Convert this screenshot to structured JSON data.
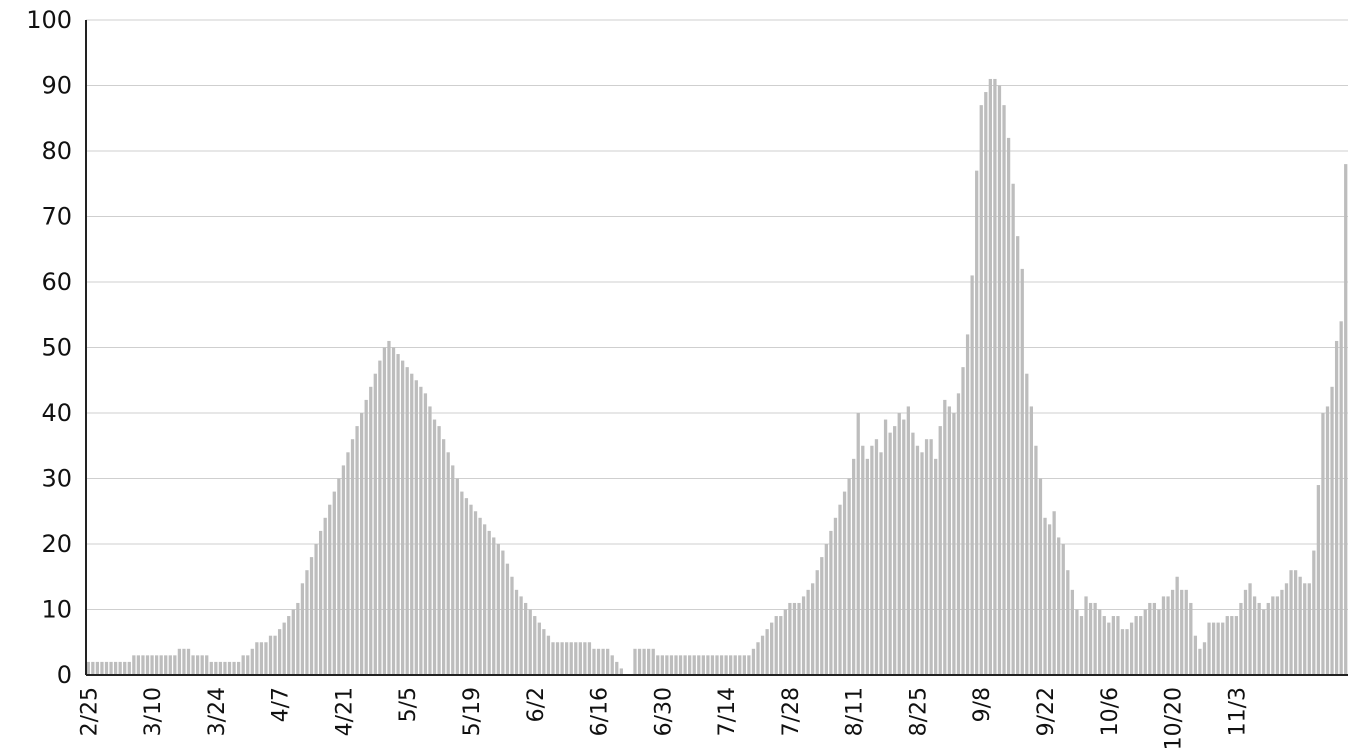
{
  "chart_data": {
    "type": "bar",
    "title": "",
    "xlabel": "",
    "ylabel": "",
    "ylim": [
      0,
      100
    ],
    "y_ticks": [
      0,
      10,
      20,
      30,
      40,
      50,
      60,
      70,
      80,
      90,
      100
    ],
    "x_tick_labels": [
      "2/25",
      "3/10",
      "3/24",
      "4/7",
      "4/21",
      "5/5",
      "5/19",
      "6/2",
      "6/16",
      "6/30",
      "7/14",
      "7/28",
      "8/11",
      "8/25",
      "9/8",
      "9/22",
      "10/6",
      "10/20",
      "11/3"
    ],
    "grid": "horizontal",
    "bar_color": "#bdbdbd",
    "start_date": "2/25",
    "series": [
      {
        "values": [
          2,
          2,
          2,
          2,
          2,
          2,
          2,
          2,
          2,
          2,
          3,
          3,
          3,
          3,
          3,
          3,
          3,
          3,
          3,
          3,
          4,
          4,
          4,
          3,
          3,
          3,
          3,
          2,
          2,
          2,
          2,
          2,
          2,
          2,
          3,
          3,
          4,
          5,
          5,
          5,
          6,
          6,
          7,
          8,
          9,
          10,
          11,
          14,
          16,
          18,
          20,
          22,
          24,
          26,
          28,
          30,
          32,
          34,
          36,
          38,
          40,
          42,
          44,
          46,
          48,
          50,
          51,
          50,
          49,
          48,
          47,
          46,
          45,
          44,
          43,
          41,
          39,
          38,
          36,
          34,
          32,
          30,
          28,
          27,
          26,
          25,
          24,
          23,
          22,
          21,
          20,
          19,
          17,
          15,
          13,
          12,
          11,
          10,
          9,
          8,
          7,
          6,
          5,
          5,
          5,
          5,
          5,
          5,
          5,
          5,
          5,
          4,
          4,
          4,
          4,
          3,
          2,
          1,
          0,
          0,
          4,
          4,
          4,
          4,
          4,
          3,
          3,
          3,
          3,
          3,
          3,
          3,
          3,
          3,
          3,
          3,
          3,
          3,
          3,
          3,
          3,
          3,
          3,
          3,
          3,
          3,
          4,
          5,
          6,
          7,
          8,
          9,
          9,
          10,
          11,
          11,
          11,
          12,
          13,
          14,
          16,
          18,
          20,
          22,
          24,
          26,
          28,
          30,
          33,
          40,
          35,
          33,
          35,
          36,
          34,
          39,
          37,
          38,
          40,
          39,
          41,
          37,
          35,
          34,
          36,
          36,
          33,
          38,
          42,
          41,
          40,
          43,
          47,
          52,
          61,
          77,
          87,
          89,
          91,
          91,
          90,
          87,
          82,
          75,
          67,
          62,
          46,
          41,
          35,
          30,
          24,
          23,
          25,
          21,
          20,
          16,
          13,
          10,
          9,
          12,
          11,
          11,
          10,
          9,
          8,
          9,
          9,
          7,
          7,
          8,
          9,
          9,
          10,
          11,
          11,
          10,
          12,
          12,
          13,
          15,
          13,
          13,
          11,
          6,
          4,
          5,
          8,
          8,
          8,
          8,
          9,
          9,
          9,
          11,
          13,
          14,
          12,
          11,
          10,
          11,
          12,
          12,
          13,
          14,
          16,
          16,
          15,
          14,
          14,
          19,
          29,
          40,
          41,
          44,
          51,
          54,
          78
        ]
      }
    ]
  }
}
